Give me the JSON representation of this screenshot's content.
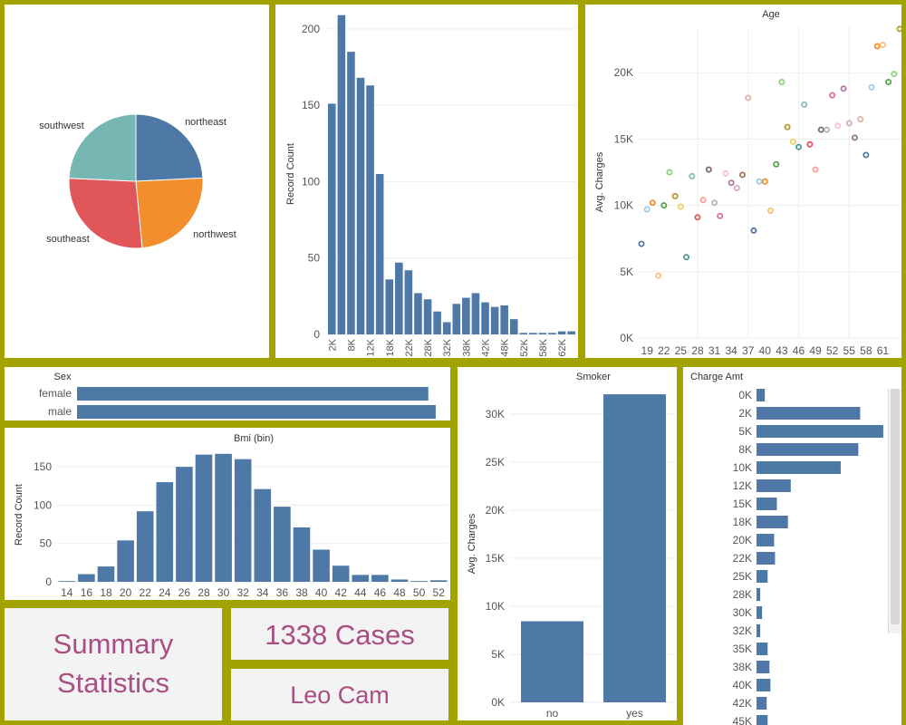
{
  "colors": {
    "bar": "#4e79a7",
    "text": "#555555",
    "title": "#333333",
    "accent": "#a84f84",
    "grid": "#eeeeee",
    "border": "#a3a300"
  },
  "summary": {
    "title_line1": "Summary",
    "title_line2": "Statistics",
    "cases": "1338 Cases",
    "author": "Leo Cam"
  },
  "chart_data": [
    {
      "id": "region",
      "type": "pie",
      "title": "",
      "labels": [
        "northeast",
        "northwest",
        "southeast",
        "southwest"
      ],
      "values": [
        324,
        325,
        364,
        325
      ],
      "colors": [
        "#4e79a7",
        "#f28e2b",
        "#e15759",
        "#76b7b2"
      ]
    },
    {
      "id": "charges_hist",
      "type": "bar",
      "title": "",
      "ylabel": "Record Count",
      "xlabel": "",
      "ylim": [
        0,
        210
      ],
      "yticks": [
        0,
        50,
        100,
        150,
        200
      ],
      "x_tick_labels": [
        "2K",
        "8K",
        "12K",
        "18K",
        "22K",
        "28K",
        "32K",
        "38K",
        "42K",
        "48K",
        "52K",
        "58K",
        "62K"
      ],
      "values": [
        151,
        209,
        185,
        168,
        163,
        105,
        36,
        47,
        42,
        27,
        23,
        15,
        8,
        20,
        24,
        27,
        21,
        18,
        19,
        10,
        1,
        1,
        1,
        1,
        2,
        2
      ]
    },
    {
      "id": "age_charges",
      "type": "scatter",
      "title": "Age",
      "ylabel": "Avg. Charges",
      "xlabel": "",
      "x_tick_labels": [
        "19",
        "22",
        "25",
        "28",
        "31",
        "34",
        "37",
        "40",
        "43",
        "46",
        "49",
        "52",
        "55",
        "58",
        "61"
      ],
      "xlim": [
        18,
        64
      ],
      "ylim": [
        0,
        23500
      ],
      "yticks": [
        0,
        5000,
        10000,
        15000,
        20000
      ],
      "ytick_labels": [
        "0K",
        "5K",
        "10K",
        "15K",
        "20K"
      ],
      "points": [
        {
          "x": 18,
          "y": 7100,
          "c": "#4e79a7"
        },
        {
          "x": 19,
          "y": 9700,
          "c": "#a0cbe8"
        },
        {
          "x": 20,
          "y": 10200,
          "c": "#f28e2b"
        },
        {
          "x": 21,
          "y": 4700,
          "c": "#ffbe7d"
        },
        {
          "x": 22,
          "y": 10000,
          "c": "#59a14f"
        },
        {
          "x": 23,
          "y": 12500,
          "c": "#8cd17d"
        },
        {
          "x": 24,
          "y": 10700,
          "c": "#b6992d"
        },
        {
          "x": 25,
          "y": 9900,
          "c": "#f1ce63"
        },
        {
          "x": 26,
          "y": 6100,
          "c": "#499894"
        },
        {
          "x": 27,
          "y": 12200,
          "c": "#86bcb6"
        },
        {
          "x": 28,
          "y": 9100,
          "c": "#e15759"
        },
        {
          "x": 29,
          "y": 10400,
          "c": "#ff9d9a"
        },
        {
          "x": 30,
          "y": 12700,
          "c": "#79706e"
        },
        {
          "x": 31,
          "y": 10200,
          "c": "#bab0ac"
        },
        {
          "x": 32,
          "y": 9200,
          "c": "#d37295"
        },
        {
          "x": 33,
          "y": 12400,
          "c": "#fabfd2"
        },
        {
          "x": 34,
          "y": 11700,
          "c": "#b07aa1"
        },
        {
          "x": 35,
          "y": 11300,
          "c": "#d4a6c8"
        },
        {
          "x": 36,
          "y": 12300,
          "c": "#9d7660"
        },
        {
          "x": 37,
          "y": 18100,
          "c": "#d7b5a6"
        },
        {
          "x": 38,
          "y": 8100,
          "c": "#4e79a7"
        },
        {
          "x": 39,
          "y": 11800,
          "c": "#a0cbe8"
        },
        {
          "x": 40,
          "y": 11800,
          "c": "#f28e2b"
        },
        {
          "x": 41,
          "y": 9600,
          "c": "#ffbe7d"
        },
        {
          "x": 42,
          "y": 13100,
          "c": "#59a14f"
        },
        {
          "x": 43,
          "y": 19300,
          "c": "#8cd17d"
        },
        {
          "x": 44,
          "y": 15900,
          "c": "#b6992d"
        },
        {
          "x": 45,
          "y": 14800,
          "c": "#f1ce63"
        },
        {
          "x": 46,
          "y": 14400,
          "c": "#499894"
        },
        {
          "x": 47,
          "y": 17600,
          "c": "#86bcb6"
        },
        {
          "x": 48,
          "y": 14600,
          "c": "#e15759"
        },
        {
          "x": 49,
          "y": 12700,
          "c": "#ff9d9a"
        },
        {
          "x": 50,
          "y": 15700,
          "c": "#79706e"
        },
        {
          "x": 51,
          "y": 15700,
          "c": "#bab0ac"
        },
        {
          "x": 52,
          "y": 18300,
          "c": "#d37295"
        },
        {
          "x": 53,
          "y": 16000,
          "c": "#fabfd2"
        },
        {
          "x": 54,
          "y": 18800,
          "c": "#b07aa1"
        },
        {
          "x": 55,
          "y": 16200,
          "c": "#d4a6c8"
        },
        {
          "x": 56,
          "y": 15100,
          "c": "#9d7660"
        },
        {
          "x": 57,
          "y": 16500,
          "c": "#d7b5a6"
        },
        {
          "x": 58,
          "y": 13800,
          "c": "#4e79a7"
        },
        {
          "x": 59,
          "y": 18900,
          "c": "#a0cbe8"
        },
        {
          "x": 60,
          "y": 22000,
          "c": "#f28e2b"
        },
        {
          "x": 61,
          "y": 22100,
          "c": "#ffbe7d"
        },
        {
          "x": 62,
          "y": 19300,
          "c": "#59a14f"
        },
        {
          "x": 63,
          "y": 19900,
          "c": "#8cd17d"
        },
        {
          "x": 64,
          "y": 23300,
          "c": "#b6992d"
        }
      ]
    },
    {
      "id": "sex",
      "type": "bar",
      "orientation": "horizontal",
      "title": "Sex",
      "categories": [
        "female",
        "male"
      ],
      "values": [
        662,
        676
      ],
      "xlim": [
        0,
        700
      ]
    },
    {
      "id": "bmi_hist",
      "type": "bar",
      "title": "Bmi (bin)",
      "ylabel": "Record Count",
      "xlabel": "",
      "categories": [
        "14",
        "16",
        "18",
        "20",
        "22",
        "24",
        "26",
        "28",
        "30",
        "32",
        "34",
        "36",
        "38",
        "40",
        "42",
        "44",
        "46",
        "48",
        "50",
        "52"
      ],
      "values": [
        1,
        10,
        20,
        54,
        92,
        130,
        150,
        166,
        167,
        160,
        121,
        98,
        71,
        42,
        21,
        9,
        9,
        3,
        1,
        2
      ],
      "ylim": [
        0,
        175
      ],
      "yticks": [
        0,
        50,
        100,
        150
      ]
    },
    {
      "id": "smoker",
      "type": "bar",
      "title": "Smoker",
      "ylabel": "Avg. Charges",
      "xlabel": "",
      "categories": [
        "no",
        "yes"
      ],
      "values": [
        8434,
        32050
      ],
      "ylim": [
        0,
        33000
      ],
      "yticks": [
        0,
        5000,
        10000,
        15000,
        20000,
        25000,
        30000
      ],
      "ytick_labels": [
        "0K",
        "5K",
        "10K",
        "15K",
        "20K",
        "25K",
        "30K"
      ]
    },
    {
      "id": "charge_amt",
      "type": "bar",
      "orientation": "horizontal",
      "title": "Charge Amt",
      "categories": [
        "0K",
        "2K",
        "5K",
        "8K",
        "10K",
        "12K",
        "15K",
        "18K",
        "20K",
        "22K",
        "25K",
        "28K",
        "30K",
        "32K",
        "35K",
        "38K",
        "40K",
        "42K",
        "45K"
      ],
      "values": [
        9,
        112,
        137,
        110,
        91,
        37,
        22,
        34,
        19,
        20,
        12,
        4,
        6,
        4,
        12,
        14,
        15,
        11,
        12
      ],
      "xlim": [
        0,
        140
      ]
    }
  ]
}
